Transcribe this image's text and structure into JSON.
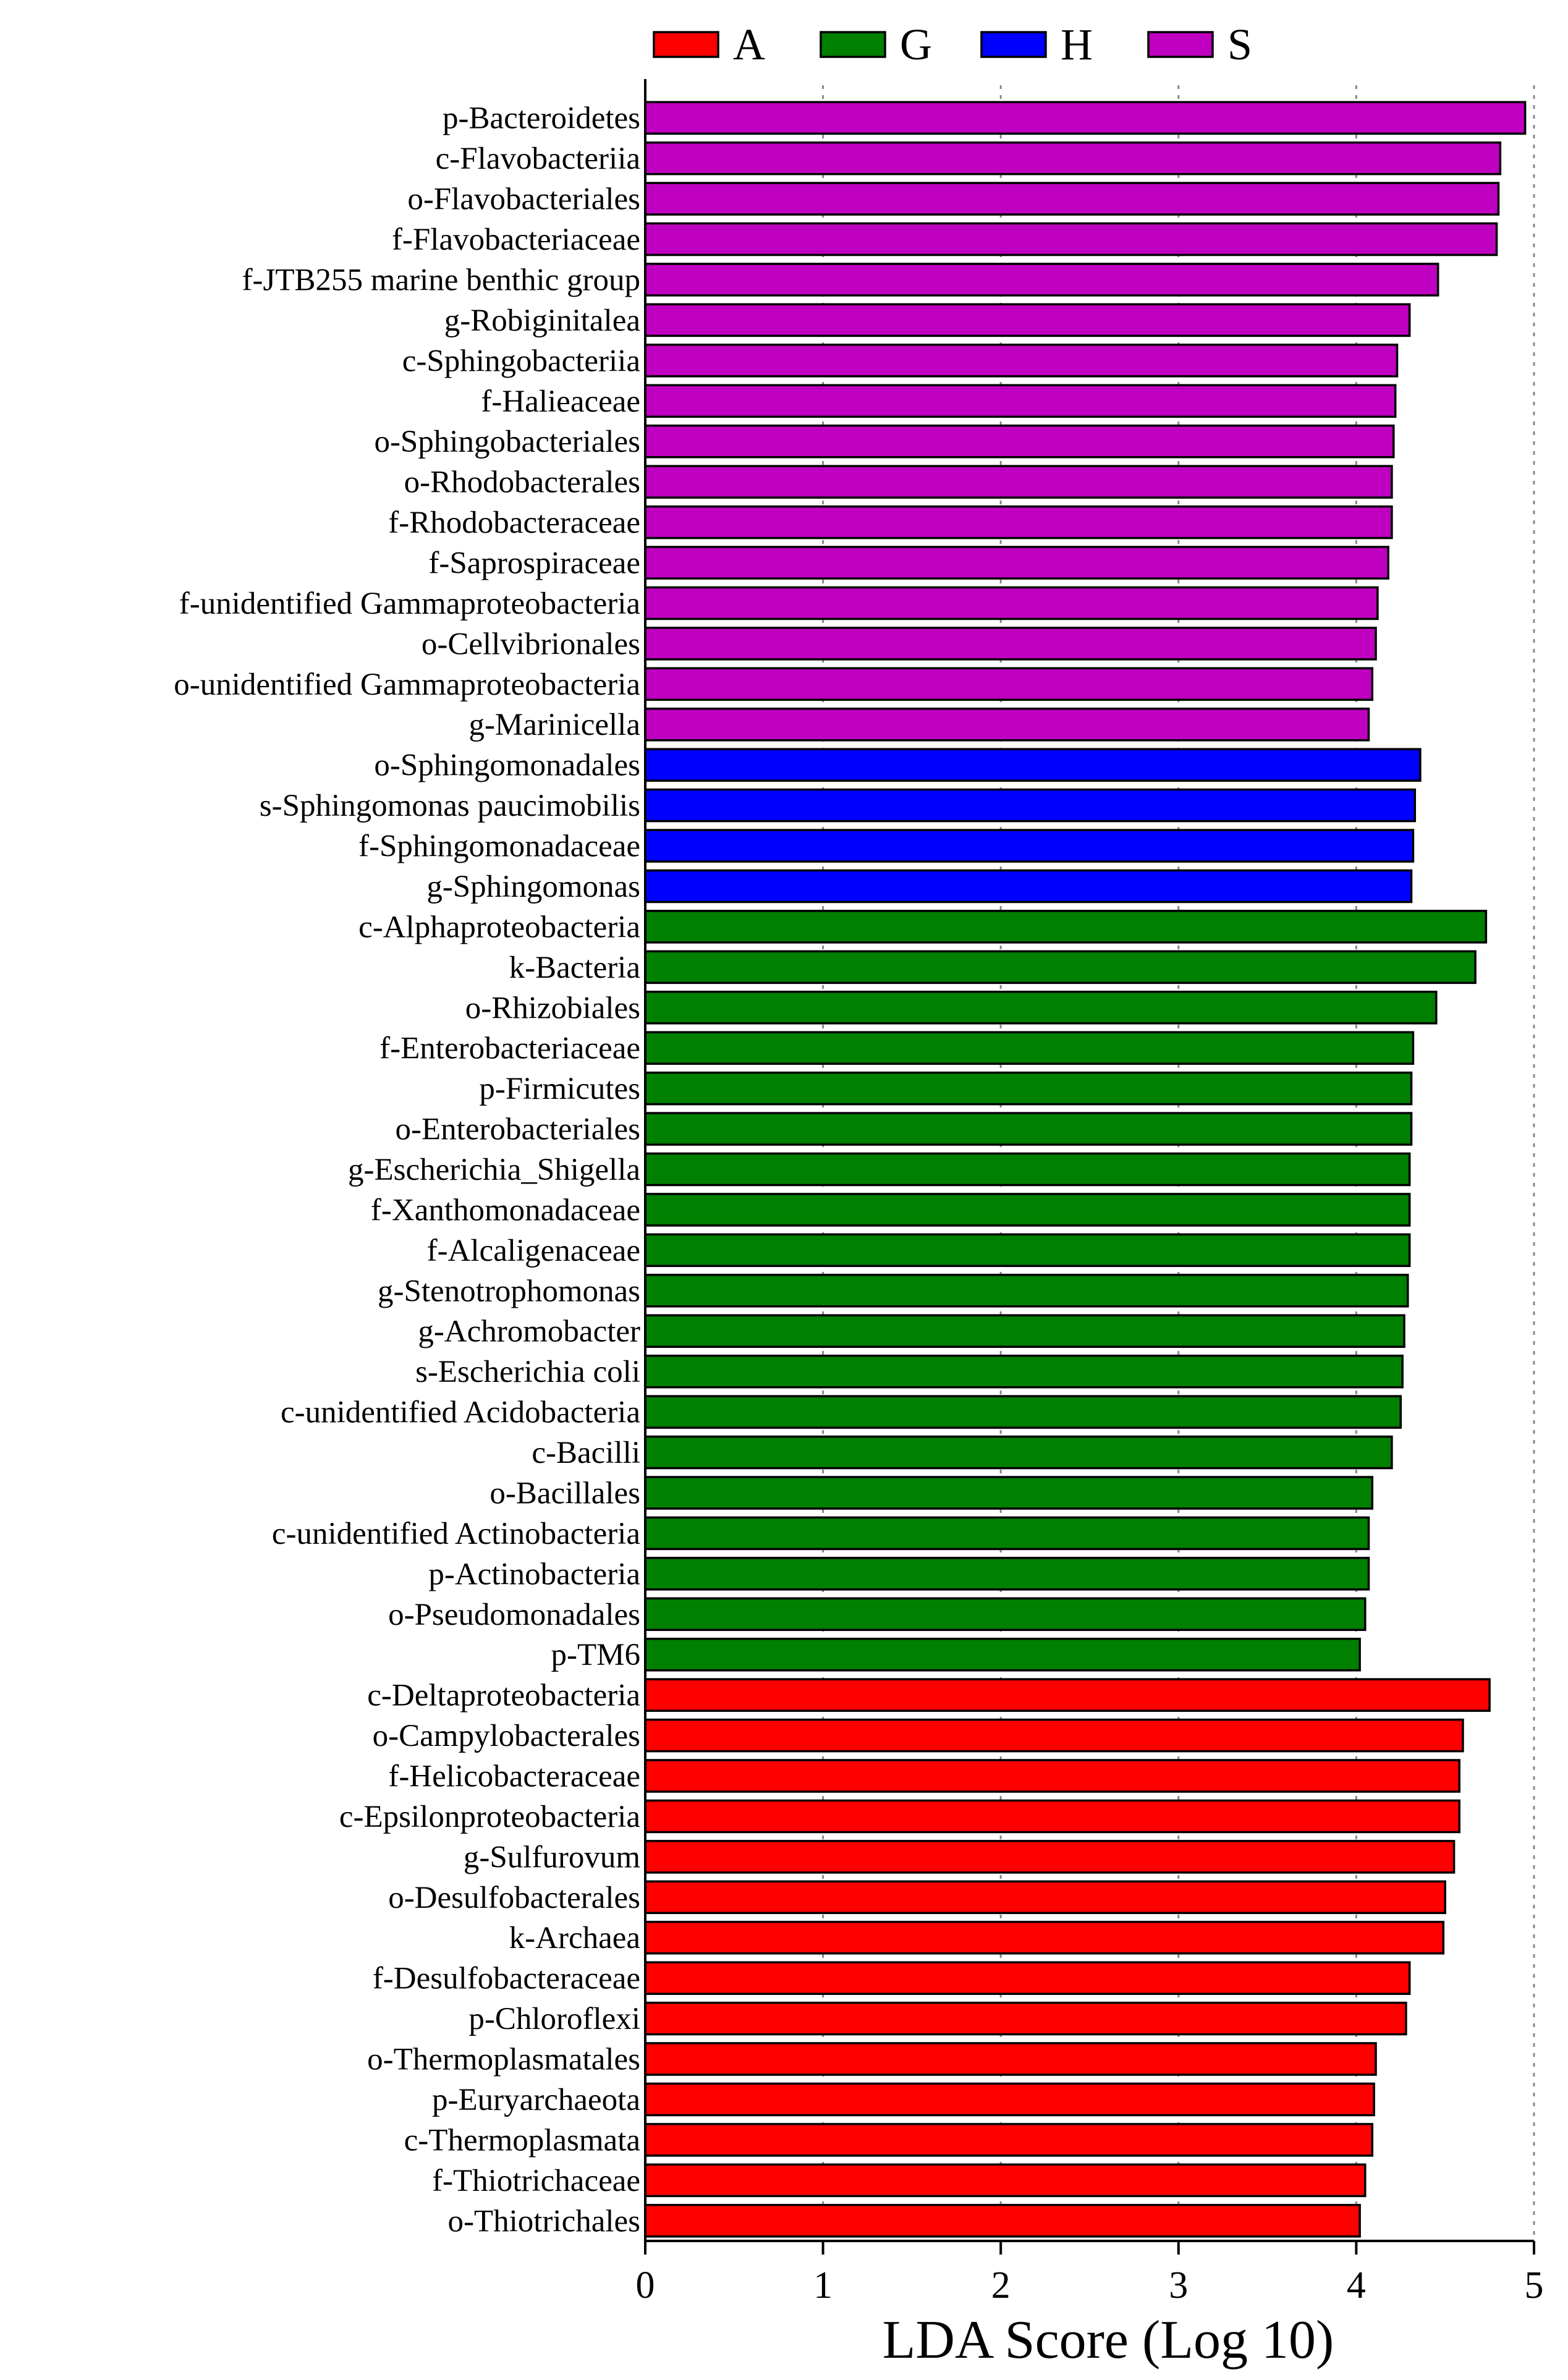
{
  "chart_data": {
    "type": "bar",
    "orientation": "horizontal",
    "xlabel": "LDA Score (Log 10)",
    "xlim": [
      0,
      5
    ],
    "xticks": [
      0,
      1,
      2,
      3,
      4,
      5
    ],
    "grid": "vertical dotted",
    "legend_position": "top",
    "legend": [
      {
        "key": "A",
        "label": "A",
        "color": "#FF0000"
      },
      {
        "key": "G",
        "label": "G",
        "color": "#008000"
      },
      {
        "key": "H",
        "label": "H",
        "color": "#0000FF"
      },
      {
        "key": "S",
        "label": "S",
        "color": "#C000C0"
      }
    ],
    "bars": [
      {
        "label": "p-Bacteroidetes",
        "value": 4.95,
        "group": "S"
      },
      {
        "label": "c-Flavobacteriia",
        "value": 4.81,
        "group": "S"
      },
      {
        "label": "o-Flavobacteriales",
        "value": 4.8,
        "group": "S"
      },
      {
        "label": "f-Flavobacteriaceae",
        "value": 4.79,
        "group": "S"
      },
      {
        "label": "f-JTB255 marine benthic group",
        "value": 4.46,
        "group": "S"
      },
      {
        "label": "g-Robiginitalea",
        "value": 4.3,
        "group": "S"
      },
      {
        "label": "c-Sphingobacteriia",
        "value": 4.23,
        "group": "S"
      },
      {
        "label": "f-Halieaceae",
        "value": 4.22,
        "group": "S"
      },
      {
        "label": "o-Sphingobacteriales",
        "value": 4.21,
        "group": "S"
      },
      {
        "label": "o-Rhodobacterales",
        "value": 4.2,
        "group": "S"
      },
      {
        "label": "f-Rhodobacteraceae",
        "value": 4.2,
        "group": "S"
      },
      {
        "label": "f-Saprospiraceae",
        "value": 4.18,
        "group": "S"
      },
      {
        "label": "f-unidentified Gammaproteobacteria",
        "value": 4.12,
        "group": "S"
      },
      {
        "label": "o-Cellvibrionales",
        "value": 4.11,
        "group": "S"
      },
      {
        "label": "o-unidentified Gammaproteobacteria",
        "value": 4.09,
        "group": "S"
      },
      {
        "label": "g-Marinicella",
        "value": 4.07,
        "group": "S"
      },
      {
        "label": "o-Sphingomonadales",
        "value": 4.36,
        "group": "H"
      },
      {
        "label": "s-Sphingomonas paucimobilis",
        "value": 4.33,
        "group": "H"
      },
      {
        "label": "f-Sphingomonadaceae",
        "value": 4.32,
        "group": "H"
      },
      {
        "label": "g-Sphingomonas",
        "value": 4.31,
        "group": "H"
      },
      {
        "label": "c-Alphaproteobacteria",
        "value": 4.73,
        "group": "G"
      },
      {
        "label": "k-Bacteria",
        "value": 4.67,
        "group": "G"
      },
      {
        "label": "o-Rhizobiales",
        "value": 4.45,
        "group": "G"
      },
      {
        "label": "f-Enterobacteriaceae",
        "value": 4.32,
        "group": "G"
      },
      {
        "label": "p-Firmicutes",
        "value": 4.31,
        "group": "G"
      },
      {
        "label": "o-Enterobacteriales",
        "value": 4.31,
        "group": "G"
      },
      {
        "label": "g-Escherichia_Shigella",
        "value": 4.3,
        "group": "G"
      },
      {
        "label": "f-Xanthomonadaceae",
        "value": 4.3,
        "group": "G"
      },
      {
        "label": "f-Alcaligenaceae",
        "value": 4.3,
        "group": "G"
      },
      {
        "label": "g-Stenotrophomonas",
        "value": 4.29,
        "group": "G"
      },
      {
        "label": "g-Achromobacter",
        "value": 4.27,
        "group": "G"
      },
      {
        "label": "s-Escherichia coli",
        "value": 4.26,
        "group": "G"
      },
      {
        "label": "c-unidentified Acidobacteria",
        "value": 4.25,
        "group": "G"
      },
      {
        "label": "c-Bacilli",
        "value": 4.2,
        "group": "G"
      },
      {
        "label": "o-Bacillales",
        "value": 4.09,
        "group": "G"
      },
      {
        "label": "c-unidentified Actinobacteria",
        "value": 4.07,
        "group": "G"
      },
      {
        "label": "p-Actinobacteria",
        "value": 4.07,
        "group": "G"
      },
      {
        "label": "o-Pseudomonadales",
        "value": 4.05,
        "group": "G"
      },
      {
        "label": "p-TM6",
        "value": 4.02,
        "group": "G"
      },
      {
        "label": "c-Deltaproteobacteria",
        "value": 4.75,
        "group": "A"
      },
      {
        "label": "o-Campylobacterales",
        "value": 4.6,
        "group": "A"
      },
      {
        "label": "f-Helicobacteraceae",
        "value": 4.58,
        "group": "A"
      },
      {
        "label": "c-Epsilonproteobacteria",
        "value": 4.58,
        "group": "A"
      },
      {
        "label": "g-Sulfurovum",
        "value": 4.55,
        "group": "A"
      },
      {
        "label": "o-Desulfobacterales",
        "value": 4.5,
        "group": "A"
      },
      {
        "label": "k-Archaea",
        "value": 4.49,
        "group": "A"
      },
      {
        "label": "f-Desulfobacteraceae",
        "value": 4.3,
        "group": "A"
      },
      {
        "label": "p-Chloroflexi",
        "value": 4.28,
        "group": "A"
      },
      {
        "label": "o-Thermoplasmatales",
        "value": 4.11,
        "group": "A"
      },
      {
        "label": "p-Euryarchaeota",
        "value": 4.1,
        "group": "A"
      },
      {
        "label": "c-Thermoplasmata",
        "value": 4.09,
        "group": "A"
      },
      {
        "label": "f-Thiotrichaceae",
        "value": 4.05,
        "group": "A"
      },
      {
        "label": "o-Thiotrichales",
        "value": 4.02,
        "group": "A"
      }
    ]
  }
}
